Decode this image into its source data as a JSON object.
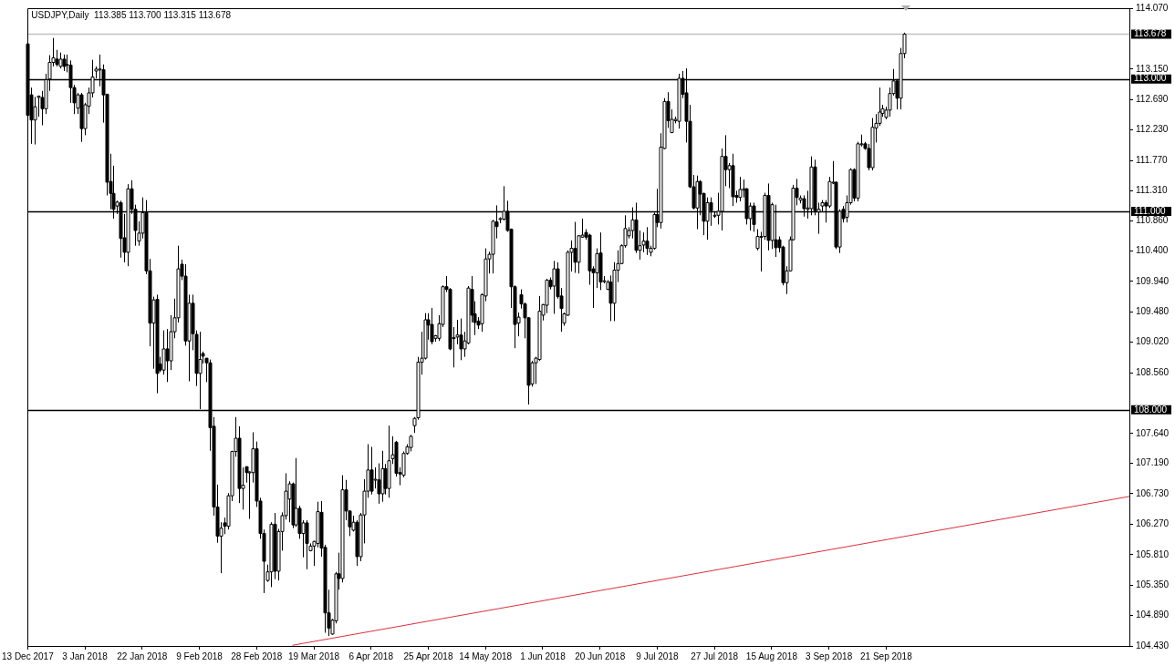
{
  "chart_data": {
    "type": "candlestick",
    "title": "USDJPY,Daily  113.385 113.700 113.315 113.678",
    "categories": [
      "13 Dec 2017",
      null,
      null,
      null,
      null,
      null,
      null,
      null,
      null,
      null,
      null,
      null,
      null,
      null,
      null,
      null,
      "3 Jan 2018",
      null,
      null,
      null,
      null,
      null,
      null,
      null,
      null,
      null,
      null,
      null,
      null,
      null,
      null,
      null,
      "22 Jan 2018",
      null,
      null,
      null,
      null,
      null,
      null,
      null,
      null,
      null,
      null,
      null,
      null,
      null,
      null,
      null,
      "9 Feb 2018",
      null,
      null,
      null,
      null,
      null,
      null,
      null,
      null,
      null,
      null,
      null,
      null,
      null,
      null,
      null,
      "28 Feb 2018",
      null,
      null,
      null,
      null,
      null,
      null,
      null,
      null,
      null,
      null,
      null,
      null,
      null,
      null,
      null,
      "19 Mar 2018",
      null,
      null,
      null,
      null,
      null,
      null,
      null,
      null,
      null,
      null,
      null,
      null,
      null,
      null,
      null,
      "6 Apr 2018",
      null,
      null,
      null,
      null,
      null,
      null,
      null,
      null,
      null,
      null,
      null,
      null,
      null,
      null,
      null,
      "25 Apr 2018",
      null,
      null,
      null,
      null,
      null,
      null,
      null,
      null,
      null,
      null,
      null,
      null,
      null,
      null,
      null,
      "14 May 2018",
      null,
      null,
      null,
      null,
      null,
      null,
      null,
      null,
      null,
      null,
      null,
      null,
      null,
      null,
      null,
      "1 Jun 2018",
      null,
      null,
      null,
      null,
      null,
      null,
      null,
      null,
      null,
      null,
      null,
      null,
      null,
      null,
      null,
      "20 Jun 2018",
      null,
      null,
      null,
      null,
      null,
      null,
      null,
      null,
      null,
      null,
      null,
      null,
      null,
      null,
      null,
      "9 Jul 2018",
      null,
      null,
      null,
      null,
      null,
      null,
      null,
      null,
      null,
      null,
      null,
      null,
      null,
      null,
      null,
      "27 Jul 2018",
      null,
      null,
      null,
      null,
      null,
      null,
      null,
      null,
      null,
      null,
      null,
      null,
      null,
      null,
      null,
      "15 Aug 2018",
      null,
      null,
      null,
      null,
      null,
      null,
      null,
      null,
      null,
      null,
      null,
      null,
      null,
      null,
      null,
      "3 Sep 2018",
      null,
      null,
      null,
      null,
      null,
      null,
      null,
      null,
      null,
      null,
      null,
      null,
      null,
      null,
      null,
      "21 Sep 2018",
      null,
      null,
      null,
      null,
      null,
      null,
      null,
      null,
      null,
      null,
      null,
      null,
      null,
      null,
      null,
      null,
      null,
      null,
      null,
      null,
      null,
      null,
      null,
      null,
      null,
      null,
      null,
      null,
      null,
      null,
      null,
      null,
      null,
      null,
      null,
      null,
      null,
      null,
      null,
      null,
      null,
      null,
      null,
      null,
      null,
      null,
      null,
      null,
      null,
      null,
      null,
      null,
      null,
      null,
      null,
      null,
      null,
      null,
      null,
      null,
      null,
      null,
      null,
      null,
      null,
      null,
      null,
      null
    ],
    "ohlc": [
      [
        113.53,
        113.6,
        112.4,
        112.45
      ],
      [
        112.76,
        112.87,
        112.02,
        112.38
      ],
      [
        112.38,
        112.73,
        112.01,
        112.58
      ],
      [
        112.72,
        112.75,
        112.43,
        112.74
      ],
      [
        112.72,
        112.82,
        112.3,
        112.55
      ],
      [
        112.55,
        113.08,
        112.47,
        112.99
      ],
      [
        113.0,
        113.36,
        112.82,
        113.25
      ],
      [
        113.25,
        113.62,
        113.19,
        113.32
      ],
      [
        113.3,
        113.44,
        113.19,
        113.22
      ],
      [
        113.19,
        113.4,
        113.16,
        113.3
      ],
      [
        113.3,
        113.37,
        113.12,
        113.19
      ],
      [
        113.22,
        113.37,
        113.1,
        113.22
      ],
      [
        113.21,
        113.28,
        112.64,
        112.87
      ],
      [
        112.87,
        112.91,
        112.47,
        112.64
      ],
      [
        112.56,
        112.79,
        112.47,
        112.76
      ],
      [
        112.76,
        112.79,
        112.05,
        112.25
      ],
      [
        112.25,
        112.64,
        112.15,
        112.61
      ],
      [
        112.59,
        112.87,
        112.47,
        112.79
      ],
      [
        112.79,
        113.29,
        112.72,
        113.03
      ],
      [
        113.12,
        113.19,
        113.01,
        113.15
      ],
      [
        113.14,
        113.37,
        112.89,
        113.15
      ],
      [
        113.14,
        113.22,
        112.34,
        112.76
      ],
      [
        112.77,
        112.77,
        111.24,
        111.44
      ],
      [
        111.45,
        111.87,
        111.03,
        111.27
      ],
      [
        111.27,
        111.69,
        110.89,
        111.03
      ],
      [
        111.08,
        111.16,
        110.96,
        111.14
      ],
      [
        111.13,
        111.16,
        110.3,
        110.59
      ],
      [
        110.6,
        110.96,
        110.23,
        110.38
      ],
      [
        110.38,
        111.41,
        110.17,
        111.34
      ],
      [
        111.34,
        111.47,
        110.96,
        111.03
      ],
      [
        111.03,
        111.1,
        110.48,
        110.71
      ],
      [
        110.55,
        110.85,
        110.48,
        110.67
      ],
      [
        110.67,
        111.21,
        110.59,
        110.98
      ],
      [
        110.98,
        111.17,
        110.05,
        110.1
      ],
      [
        110.1,
        110.28,
        108.96,
        109.31
      ],
      [
        109.31,
        109.71,
        108.62,
        109.66
      ],
      [
        109.67,
        109.74,
        108.25,
        108.55
      ],
      [
        108.69,
        108.8,
        108.57,
        108.6
      ],
      [
        108.6,
        109.2,
        108.53,
        108.92
      ],
      [
        108.92,
        109.22,
        108.42,
        108.74
      ],
      [
        108.74,
        109.43,
        108.6,
        109.18
      ],
      [
        109.18,
        109.68,
        109.08,
        109.39
      ],
      [
        109.39,
        110.48,
        109.32,
        110.13
      ],
      [
        110.2,
        110.27,
        109.96,
        110.02
      ],
      [
        110.02,
        110.2,
        108.97,
        109.04
      ],
      [
        109.04,
        109.74,
        108.43,
        109.61
      ],
      [
        109.61,
        109.74,
        108.9,
        109.15
      ],
      [
        109.14,
        109.2,
        108.36,
        108.55
      ],
      [
        108.55,
        109.18,
        108.01,
        108.76
      ],
      [
        108.85,
        108.88,
        108.7,
        108.81
      ],
      [
        108.78,
        108.78,
        108.42,
        108.71
      ],
      [
        108.71,
        108.76,
        107.38,
        107.73
      ],
      [
        107.75,
        107.89,
        106.4,
        106.53
      ],
      [
        106.53,
        106.87,
        105.99,
        106.09
      ],
      [
        106.09,
        106.3,
        105.53,
        106.21
      ],
      [
        106.29,
        106.37,
        106.12,
        106.24
      ],
      [
        106.24,
        106.74,
        106.19,
        106.7
      ],
      [
        106.7,
        107.38,
        106.62,
        107.37
      ],
      [
        107.37,
        107.89,
        107.29,
        107.57
      ],
      [
        107.57,
        107.75,
        106.59,
        106.81
      ],
      [
        106.81,
        107.13,
        106.49,
        106.86
      ],
      [
        107.14,
        107.14,
        106.9,
        107.05
      ],
      [
        107.06,
        107.07,
        106.35,
        107.06
      ],
      [
        107.05,
        107.66,
        106.9,
        107.41
      ],
      [
        107.41,
        107.52,
        106.53,
        106.62
      ],
      [
        106.62,
        106.67,
        106.05,
        106.13
      ],
      [
        106.13,
        106.19,
        105.23,
        105.71
      ],
      [
        105.42,
        105.66,
        105.4,
        105.55
      ],
      [
        105.55,
        106.3,
        105.32,
        106.27
      ],
      [
        106.27,
        106.44,
        105.44,
        105.56
      ],
      [
        105.56,
        106.2,
        105.42,
        106.16
      ],
      [
        106.16,
        106.45,
        105.87,
        106.4
      ],
      [
        106.4,
        107.04,
        106.34,
        106.77
      ],
      [
        106.65,
        106.92,
        106.3,
        106.88
      ],
      [
        106.88,
        106.9,
        106.21,
        106.26
      ],
      [
        106.26,
        107.27,
        106.23,
        106.51
      ],
      [
        106.51,
        106.55,
        106.05,
        106.13
      ],
      [
        106.13,
        106.33,
        105.77,
        106.29
      ],
      [
        106.29,
        106.33,
        105.59,
        105.98
      ],
      [
        105.87,
        105.98,
        105.86,
        105.94
      ],
      [
        105.94,
        106.02,
        105.64,
        106.01
      ],
      [
        105.98,
        106.61,
        105.92,
        106.46
      ],
      [
        106.45,
        106.62,
        105.78,
        105.91
      ],
      [
        105.92,
        105.96,
        104.63,
        104.93
      ],
      [
        104.93,
        105.28,
        104.58,
        104.7
      ],
      [
        104.61,
        104.84,
        104.6,
        104.82
      ],
      [
        104.81,
        105.55,
        104.77,
        105.52
      ],
      [
        105.52,
        105.84,
        105.28,
        105.45
      ],
      [
        105.45,
        107.01,
        105.39,
        106.79
      ],
      [
        106.79,
        106.94,
        106.33,
        106.47
      ],
      [
        106.47,
        106.48,
        106.09,
        106.23
      ],
      [
        106.18,
        106.4,
        106.16,
        106.3
      ],
      [
        106.3,
        106.33,
        105.64,
        105.78
      ],
      [
        105.78,
        106.44,
        105.71,
        106.41
      ],
      [
        106.41,
        106.95,
        105.98,
        106.77
      ],
      [
        106.77,
        107.48,
        106.67,
        107.09
      ],
      [
        107.09,
        107.44,
        106.72,
        106.77
      ],
      [
        106.94,
        107.13,
        106.81,
        106.95
      ],
      [
        106.94,
        107.19,
        106.58,
        106.73
      ],
      [
        106.73,
        107.38,
        106.61,
        107.11
      ],
      [
        107.11,
        107.18,
        106.72,
        106.81
      ],
      [
        106.81,
        107.76,
        106.67,
        107.23
      ],
      [
        107.26,
        107.6,
        107.18,
        107.32
      ],
      [
        107.51,
        107.53,
        106.99,
        107.04
      ],
      [
        107.05,
        107.13,
        106.86,
        107.03
      ],
      [
        107.01,
        107.37,
        106.98,
        107.34
      ],
      [
        107.34,
        107.48,
        107.32,
        107.44
      ],
      [
        107.43,
        107.62,
        107.37,
        107.6
      ],
      [
        107.76,
        107.89,
        107.65,
        107.87
      ],
      [
        107.88,
        108.8,
        107.85,
        108.72
      ],
      [
        108.72,
        109.18,
        108.53,
        108.78
      ],
      [
        108.78,
        109.46,
        108.76,
        109.36
      ],
      [
        109.36,
        109.46,
        109.06,
        109.28
      ],
      [
        109.29,
        109.54,
        108.99,
        109.03
      ],
      [
        109.08,
        109.13,
        109.03,
        109.12
      ],
      [
        109.08,
        109.43,
        109.04,
        109.3
      ],
      [
        109.29,
        109.88,
        109.25,
        109.86
      ],
      [
        109.86,
        110.02,
        109.78,
        109.82
      ],
      [
        109.82,
        109.84,
        108.9,
        108.92
      ],
      [
        109.08,
        109.25,
        108.64,
        109.09
      ],
      [
        109.1,
        109.36,
        108.99,
        109.13
      ],
      [
        109.13,
        109.38,
        108.75,
        108.92
      ],
      [
        108.92,
        109.18,
        108.8,
        109.04
      ],
      [
        109.01,
        109.87,
        108.99,
        109.84
      ],
      [
        109.82,
        110.02,
        109.32,
        109.43
      ],
      [
        109.45,
        109.64,
        109.13,
        109.32
      ],
      [
        109.34,
        109.4,
        109.22,
        109.28
      ],
      [
        109.3,
        109.76,
        109.18,
        109.74
      ],
      [
        109.72,
        110.44,
        109.64,
        110.28
      ],
      [
        110.28,
        110.39,
        110.06,
        110.35
      ],
      [
        110.35,
        110.87,
        110.06,
        110.85
      ],
      [
        110.84,
        111.09,
        110.59,
        110.77
      ],
      [
        110.88,
        110.91,
        110.82,
        110.89
      ],
      [
        110.88,
        111.38,
        110.86,
        111.0
      ],
      [
        111.0,
        111.16,
        110.69,
        110.71
      ],
      [
        110.73,
        110.74,
        109.54,
        109.86
      ],
      [
        109.86,
        109.88,
        108.93,
        109.29
      ],
      [
        109.31,
        109.47,
        109.11,
        109.4
      ],
      [
        109.74,
        109.82,
        109.53,
        109.6
      ],
      [
        109.6,
        109.62,
        109.08,
        109.39
      ],
      [
        109.39,
        109.4,
        108.08,
        108.37
      ],
      [
        108.39,
        108.74,
        108.35,
        108.71
      ],
      [
        108.71,
        108.8,
        108.39,
        108.78
      ],
      [
        108.76,
        109.72,
        108.74,
        109.49
      ],
      [
        109.43,
        109.6,
        109.35,
        109.59
      ],
      [
        109.58,
        109.98,
        109.46,
        109.96
      ],
      [
        109.96,
        110.0,
        109.82,
        109.86
      ],
      [
        109.87,
        110.25,
        109.45,
        110.13
      ],
      [
        110.13,
        110.23,
        109.68,
        109.71
      ],
      [
        109.72,
        109.84,
        109.18,
        109.53
      ],
      [
        109.31,
        109.47,
        109.27,
        109.45
      ],
      [
        109.43,
        110.41,
        109.42,
        110.38
      ],
      [
        110.38,
        110.56,
        110.09,
        110.44
      ],
      [
        110.44,
        110.84,
        110.07,
        110.23
      ],
      [
        110.23,
        110.64,
        110.06,
        110.63
      ],
      [
        110.61,
        110.89,
        110.6,
        110.64
      ],
      [
        110.68,
        110.73,
        110.57,
        110.61
      ],
      [
        110.64,
        110.66,
        109.89,
        110.1
      ],
      [
        110.13,
        110.17,
        109.54,
        110.07
      ],
      [
        110.07,
        110.44,
        109.84,
        110.36
      ],
      [
        110.37,
        110.68,
        109.81,
        109.93
      ],
      [
        109.95,
        110.02,
        109.91,
        109.95
      ],
      [
        109.82,
        109.96,
        109.81,
        109.93
      ],
      [
        109.93,
        110.03,
        109.34,
        109.61
      ],
      [
        109.61,
        110.23,
        109.34,
        110.11
      ],
      [
        110.11,
        110.41,
        109.93,
        110.21
      ],
      [
        110.21,
        110.5,
        110.2,
        110.48
      ],
      [
        110.48,
        110.94,
        110.45,
        110.74
      ],
      [
        110.63,
        110.76,
        110.59,
        110.71
      ],
      [
        110.71,
        111.06,
        110.59,
        110.87
      ],
      [
        110.87,
        111.13,
        110.37,
        110.41
      ],
      [
        110.41,
        110.71,
        110.27,
        110.48
      ],
      [
        110.49,
        110.68,
        110.38,
        110.55
      ],
      [
        110.55,
        110.76,
        110.34,
        110.44
      ],
      [
        110.38,
        110.48,
        110.32,
        110.44
      ],
      [
        110.44,
        110.98,
        110.42,
        110.95
      ],
      [
        110.95,
        111.34,
        110.76,
        110.83
      ],
      [
        110.83,
        112.18,
        110.74,
        111.97
      ],
      [
        111.95,
        112.71,
        111.94,
        112.66
      ],
      [
        112.66,
        112.8,
        112.26,
        112.37
      ],
      [
        112.19,
        112.54,
        112.18,
        112.39
      ],
      [
        112.37,
        112.43,
        112.33,
        112.39
      ],
      [
        112.36,
        113.08,
        112.25,
        113.01
      ],
      [
        113.01,
        113.12,
        112.71,
        112.77
      ],
      [
        112.79,
        113.16,
        112.04,
        112.36
      ],
      [
        112.36,
        112.61,
        111.35,
        111.37
      ],
      [
        111.37,
        111.55,
        111.03,
        111.05
      ],
      [
        111.05,
        111.54,
        110.73,
        111.45
      ],
      [
        111.45,
        111.47,
        110.94,
        111.26
      ],
      [
        111.27,
        111.28,
        110.64,
        110.85
      ],
      [
        110.85,
        111.21,
        110.57,
        111.13
      ],
      [
        111.13,
        111.21,
        110.78,
        111.01
      ],
      [
        110.94,
        110.99,
        110.9,
        110.94
      ],
      [
        110.94,
        111.28,
        110.8,
        111.0
      ],
      [
        111.0,
        111.95,
        110.71,
        111.83
      ],
      [
        111.83,
        112.15,
        111.38,
        111.63
      ],
      [
        111.63,
        111.73,
        111.35,
        111.69
      ],
      [
        111.69,
        111.87,
        111.08,
        111.22
      ],
      [
        111.24,
        111.31,
        111.13,
        111.21
      ],
      [
        111.21,
        111.52,
        111.15,
        111.33
      ],
      [
        111.32,
        111.48,
        111.21,
        111.34
      ],
      [
        111.34,
        111.35,
        110.8,
        110.89
      ],
      [
        110.89,
        111.13,
        110.71,
        111.08
      ],
      [
        111.08,
        111.13,
        110.69,
        110.8
      ],
      [
        110.44,
        110.73,
        110.41,
        110.62
      ],
      [
        110.62,
        110.69,
        110.09,
        110.62
      ],
      [
        110.62,
        111.28,
        110.57,
        111.24
      ],
      [
        111.24,
        111.42,
        110.41,
        110.56
      ],
      [
        110.56,
        111.13,
        110.43,
        111.1
      ],
      [
        110.57,
        111.1,
        110.31,
        110.45
      ],
      [
        110.57,
        110.62,
        110.38,
        110.45
      ],
      [
        110.46,
        110.48,
        109.88,
        109.92
      ],
      [
        109.92,
        110.17,
        109.75,
        110.1
      ],
      [
        110.1,
        110.62,
        110.09,
        110.57
      ],
      [
        110.57,
        111.4,
        110.56,
        111.35
      ],
      [
        111.35,
        111.49,
        111.09,
        111.21
      ],
      [
        111.17,
        111.24,
        111.12,
        111.2
      ],
      [
        111.19,
        111.24,
        110.92,
        111.04
      ],
      [
        111.03,
        111.31,
        110.89,
        111.05
      ],
      [
        111.04,
        111.83,
        110.94,
        111.67
      ],
      [
        111.67,
        111.78,
        110.94,
        111.01
      ],
      [
        110.99,
        111.13,
        110.66,
        111.03
      ],
      [
        111.08,
        111.17,
        110.99,
        111.13
      ],
      [
        111.13,
        111.17,
        110.83,
        111.08
      ],
      [
        111.08,
        111.52,
        111.05,
        111.45
      ],
      [
        111.44,
        111.76,
        111.41,
        111.44
      ],
      [
        111.44,
        111.45,
        110.43,
        110.46
      ],
      [
        110.46,
        111.03,
        110.37,
        111.0
      ],
      [
        111.03,
        111.08,
        110.83,
        110.89
      ],
      [
        110.91,
        111.24,
        110.83,
        111.13
      ],
      [
        111.13,
        111.65,
        111.1,
        111.63
      ],
      [
        111.63,
        111.65,
        111.15,
        111.2
      ],
      [
        111.2,
        112.05,
        111.15,
        112.02
      ],
      [
        112.02,
        112.16,
        111.98,
        112.02
      ],
      [
        112.02,
        112.05,
        111.93,
        111.95
      ],
      [
        111.95,
        112.02,
        111.62,
        111.66
      ],
      [
        111.66,
        112.41,
        111.62,
        112.27
      ],
      [
        112.26,
        112.47,
        112.04,
        112.33
      ],
      [
        112.33,
        112.87,
        112.29,
        112.5
      ],
      [
        112.48,
        112.61,
        112.43,
        112.55
      ],
      [
        112.42,
        112.58,
        112.39,
        112.53
      ],
      [
        112.53,
        112.87,
        112.43,
        112.78
      ],
      [
        112.78,
        113.15,
        112.75,
        112.97
      ],
      [
        112.97,
        113.0,
        112.54,
        112.71
      ],
      [
        112.71,
        113.47,
        112.54,
        113.385
      ],
      [
        113.385,
        113.7,
        113.315,
        113.678
      ],
      null,
      null,
      null,
      null,
      null,
      null,
      null,
      null,
      null,
      null,
      null,
      null,
      null,
      null,
      null,
      null,
      null,
      null,
      null,
      null,
      null,
      null,
      null,
      null,
      null,
      null,
      null,
      null,
      null,
      null,
      null,
      null,
      null,
      null,
      null,
      null,
      null,
      null,
      null,
      null,
      null,
      null,
      null,
      null,
      null,
      null,
      null,
      null,
      null,
      null,
      null,
      null,
      null,
      null,
      null,
      null,
      null,
      null,
      null,
      null,
      null,
      null,
      null
    ],
    "series": [
      {
        "type": "line",
        "color": "#dc2f3a",
        "values": [
          null,
          null,
          null,
          null,
          null,
          null,
          null,
          null,
          null,
          null,
          null,
          null,
          null,
          null,
          null,
          null,
          null,
          null,
          null,
          null,
          null,
          null,
          null,
          null,
          null,
          null,
          null,
          null,
          null,
          null,
          null,
          null,
          null,
          null,
          null,
          null,
          null,
          null,
          null,
          null,
          null,
          null,
          null,
          null,
          null,
          null,
          null,
          null,
          null,
          null,
          null,
          null,
          null,
          null,
          null,
          null,
          null,
          null,
          null,
          null,
          null,
          null,
          null,
          null,
          null,
          null,
          null,
          null,
          null,
          null,
          null,
          null,
          null,
          null,
          104.44,
          null,
          null,
          null,
          null,
          null,
          null,
          null,
          null,
          null,
          null,
          null,
          null,
          null,
          null,
          null,
          null,
          null,
          null,
          null,
          null,
          null,
          null,
          null,
          null,
          null,
          null,
          null,
          null,
          null,
          null,
          null,
          null,
          null,
          null,
          null,
          null,
          null,
          null,
          null,
          null,
          null,
          null,
          null,
          null,
          null,
          null,
          null,
          null,
          null,
          null,
          null,
          null,
          null,
          null,
          null,
          null,
          null,
          null,
          null,
          null,
          null,
          null,
          null,
          null,
          null,
          null,
          null,
          null,
          null,
          null,
          null,
          null,
          null,
          null,
          null,
          null,
          null,
          null,
          null,
          null,
          null,
          null,
          null,
          null,
          null,
          null,
          null,
          null,
          null,
          null,
          null,
          null,
          null,
          null,
          null,
          null,
          null,
          null,
          null,
          null,
          null,
          null,
          null,
          null,
          null,
          null,
          null,
          null,
          null,
          null,
          null,
          null,
          null,
          null,
          null,
          null,
          null,
          null,
          null,
          null,
          null,
          null,
          null,
          null,
          null,
          null,
          null,
          null,
          null,
          null,
          null,
          null,
          null,
          null,
          null,
          null,
          null,
          null,
          null,
          null,
          null,
          null,
          null,
          null,
          null,
          null,
          null,
          null,
          null,
          null,
          null,
          null,
          null,
          null,
          null,
          null,
          null,
          null,
          null,
          null,
          null,
          null,
          null,
          null,
          null,
          null,
          null,
          null,
          null,
          null,
          null,
          null,
          null,
          null,
          null,
          null,
          null,
          null,
          null,
          null,
          null,
          null,
          null,
          null,
          null,
          null,
          null,
          null,
          null,
          null,
          null,
          null,
          null,
          null,
          null,
          null,
          null,
          null,
          null,
          null,
          null,
          null,
          null,
          null,
          null,
          null,
          null,
          null,
          null,
          null,
          null,
          null,
          null,
          null,
          null,
          null,
          null,
          null,
          null,
          null,
          null,
          null,
          null,
          null,
          null,
          null,
          null,
          null,
          null,
          null,
          null,
          null,
          null,
          106.69
        ]
      }
    ],
    "ylim": [
      104.43,
      114.07
    ],
    "yticks": [
      {
        "value": 104.43,
        "label": "104.430"
      },
      {
        "value": 104.89,
        "label": "104.890"
      },
      {
        "value": 105.35,
        "label": "105.350"
      },
      {
        "value": 105.81,
        "label": "105.810"
      },
      {
        "value": 106.27,
        "label": "106.270"
      },
      {
        "value": 106.73,
        "label": "106.730"
      },
      {
        "value": 107.19,
        "label": "107.190"
      },
      {
        "value": 107.64,
        "label": "107.640"
      },
      {
        "value": 108.56,
        "label": "108.560"
      },
      {
        "value": 109.02,
        "label": "109.020"
      },
      {
        "value": 109.48,
        "label": "109.480"
      },
      {
        "value": 109.94,
        "label": "109.940"
      },
      {
        "value": 110.4,
        "label": "110.400"
      },
      {
        "value": 110.86,
        "label": "110.860"
      },
      {
        "value": 111.31,
        "label": "111.310"
      },
      {
        "value": 111.77,
        "label": "111.770"
      },
      {
        "value": 112.23,
        "label": "112.230"
      },
      {
        "value": 112.69,
        "label": "112.690"
      },
      {
        "value": 113.15,
        "label": "113.150"
      },
      {
        "value": 114.07,
        "label": "114.070"
      }
    ],
    "ref_lines": [
      {
        "axis": "y",
        "value": 113,
        "label": "113.000",
        "color": "#000000"
      },
      {
        "axis": "y",
        "value": 111,
        "label": "111.000",
        "color": "#000000"
      },
      {
        "axis": "y",
        "value": 108,
        "label": "108.000",
        "color": "#000000"
      },
      {
        "axis": "y",
        "value": 113.678,
        "label": "113.678",
        "color": "#c0c0c0"
      }
    ]
  }
}
